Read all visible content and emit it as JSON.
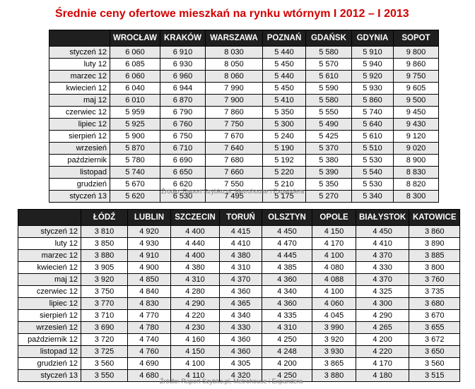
{
  "title": "Średnie ceny ofertowe mieszkań na rynku wtórnym I 2012 – I 2013",
  "table1": {
    "cities": [
      "WROCŁAW",
      "KRAKÓW",
      "WARSZAWA",
      "POZNAŃ",
      "GDAŃSK",
      "GDYNIA",
      "SOPOT"
    ],
    "rows": [
      {
        "label": "styczeń 12",
        "values": [
          "6 060",
          "6 910",
          "8 030",
          "5 440",
          "5 580",
          "5 910",
          "9 800"
        ]
      },
      {
        "label": "luty 12",
        "values": [
          "6 085",
          "6 930",
          "8 050",
          "5 450",
          "5 570",
          "5 940",
          "9 860"
        ]
      },
      {
        "label": "marzec 12",
        "values": [
          "6 060",
          "6 960",
          "8 060",
          "5 440",
          "5 610",
          "5 920",
          "9 750"
        ]
      },
      {
        "label": "kwiecień 12",
        "values": [
          "6 040",
          "6 944",
          "7 990",
          "5 450",
          "5 590",
          "5 930",
          "9 605"
        ]
      },
      {
        "label": "maj 12",
        "values": [
          "6 010",
          "6 870",
          "7 900",
          "5 410",
          "5 580",
          "5 860",
          "9 500"
        ]
      },
      {
        "label": "czerwiec 12",
        "values": [
          "5 959",
          "6 790",
          "7 860",
          "5 350",
          "5 550",
          "5 740",
          "9 450"
        ]
      },
      {
        "label": "lipiec 12",
        "values": [
          "5 925",
          "6 760",
          "7 750",
          "5 300",
          "5 490",
          "5 640",
          "9 430"
        ]
      },
      {
        "label": "sierpień 12",
        "values": [
          "5 900",
          "6 750",
          "7 670",
          "5 240",
          "5 425",
          "5 610",
          "9 120"
        ]
      },
      {
        "label": "wrzesień",
        "values": [
          "5 870",
          "6 710",
          "7 640",
          "5 190",
          "5 370",
          "5 510",
          "9 020"
        ]
      },
      {
        "label": "październik",
        "values": [
          "5 780",
          "6 690",
          "7 680",
          "5 192",
          "5 380",
          "5 530",
          "8 900"
        ]
      },
      {
        "label": "listopad",
        "values": [
          "5 740",
          "6 650",
          "7 660",
          "5 220",
          "5 390",
          "5 540",
          "8 830"
        ]
      },
      {
        "label": "grudzień",
        "values": [
          "5 670",
          "6 620",
          "7 550",
          "5 210",
          "5 350",
          "5 530",
          "8 820"
        ]
      },
      {
        "label": "styczeń 13",
        "values": [
          "5 620",
          "6 530",
          "7 495",
          "5 175",
          "5 270",
          "5 340",
          "8 300"
        ]
      }
    ],
    "source": "Źródło: Raport Szybko.pl, Metrohouse i Expandera"
  },
  "table2": {
    "cities": [
      "ŁÓDŹ",
      "LUBLIN",
      "SZCZECIN",
      "TORUŃ",
      "OLSZTYN",
      "OPOLE",
      "BIAŁYSTOK",
      "KATOWICE"
    ],
    "rows": [
      {
        "label": "styczeń 12",
        "values": [
          "3 810",
          "4 920",
          "4 400",
          "4 415",
          "4 450",
          "4 150",
          "4 450",
          "3 860"
        ]
      },
      {
        "label": "luty 12",
        "values": [
          "3 850",
          "4 930",
          "4 440",
          "4 410",
          "4 470",
          "4 170",
          "4 410",
          "3 890"
        ]
      },
      {
        "label": "marzec 12",
        "values": [
          "3 880",
          "4 910",
          "4 400",
          "4 380",
          "4 445",
          "4 100",
          "4 370",
          "3 885"
        ]
      },
      {
        "label": "kwiecień 12",
        "values": [
          "3 905",
          "4 900",
          "4 380",
          "4 310",
          "4 385",
          "4 080",
          "4 330",
          "3 800"
        ]
      },
      {
        "label": "maj 12",
        "values": [
          "3 920",
          "4 850",
          "4 310",
          "4 370",
          "4 360",
          "4 088",
          "4 370",
          "3 760"
        ]
      },
      {
        "label": "czerwiec 12",
        "values": [
          "3 750",
          "4 840",
          "4 280",
          "4 360",
          "4 340",
          "4 100",
          "4 325",
          "3 735"
        ]
      },
      {
        "label": "lipiec 12",
        "values": [
          "3 770",
          "4 830",
          "4 290",
          "4 365",
          "4 360",
          "4 060",
          "4 300",
          "3 680"
        ]
      },
      {
        "label": "sierpień 12",
        "values": [
          "3 710",
          "4 770",
          "4 220",
          "4 340",
          "4 335",
          "4 045",
          "4 290",
          "3 670"
        ]
      },
      {
        "label": "wrzesień 12",
        "values": [
          "3 690",
          "4 780",
          "4 230",
          "4 330",
          "4 310",
          "3 990",
          "4 265",
          "3 655"
        ]
      },
      {
        "label": "październik 12",
        "values": [
          "3 720",
          "4 740",
          "4 160",
          "4 360",
          "4 250",
          "3 920",
          "4 200",
          "3 672"
        ]
      },
      {
        "label": "listopad 12",
        "values": [
          "3 725",
          "4 760",
          "4 150",
          "4 360",
          "4 248",
          "3 930",
          "4 220",
          "3 650"
        ]
      },
      {
        "label": "grudzień 12",
        "values": [
          "3 560",
          "4 690",
          "4 100",
          "4 305",
          "4 200",
          "3 865",
          "4 170",
          "3 560"
        ]
      },
      {
        "label": "styczeń 13",
        "values": [
          "3 550",
          "4 680",
          "4 110",
          "4 320",
          "4 250",
          "3 880",
          "4 180",
          "3 515"
        ]
      }
    ],
    "source": "Źródło: Raport Szybko.pl, Metrohouse i Expandera"
  }
}
